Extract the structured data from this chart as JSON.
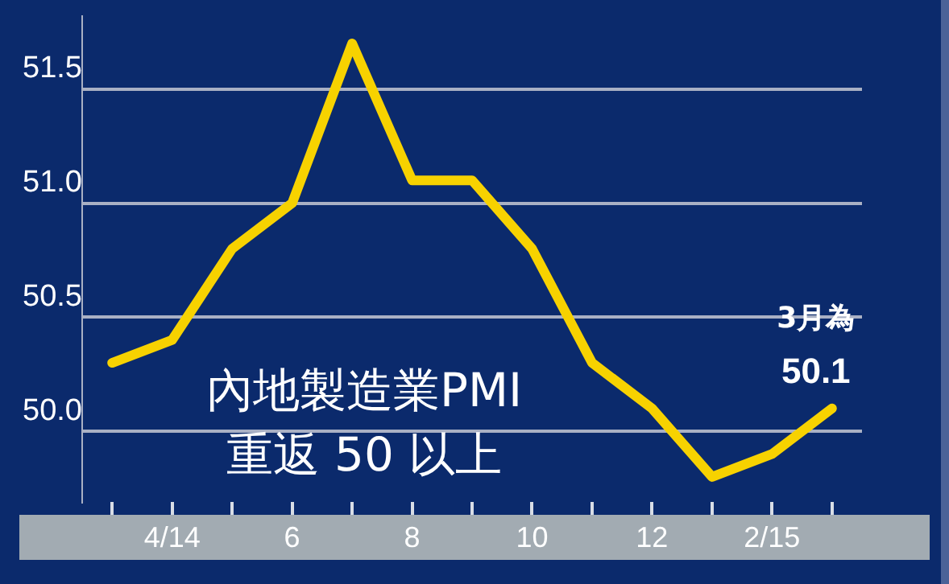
{
  "chart_data": {
    "type": "line",
    "categories": [
      null,
      "4/14",
      null,
      "6",
      null,
      "8",
      null,
      "10",
      null,
      "12",
      null,
      "2/15",
      null
    ],
    "series": [
      {
        "color": "#f7d200",
        "values": [
          50.3,
          50.4,
          50.8,
          51.0,
          51.7,
          51.1,
          51.1,
          50.8,
          50.3,
          50.1,
          49.8,
          49.9,
          50.1
        ],
        "value_labels": [
          null,
          null,
          null,
          null,
          null,
          null,
          null,
          null,
          null,
          null,
          null,
          null,
          "3月為 50.1"
        ]
      }
    ],
    "ylim": [
      49.69,
      51.82
    ],
    "yticks": [
      {
        "value": 50,
        "label": "50.0"
      },
      {
        "value": 50.5,
        "label": "50.5"
      },
      {
        "value": 51,
        "label": "51.0"
      },
      {
        "value": 51.5,
        "label": "51.5"
      }
    ],
    "grid": "y",
    "legend": false,
    "marker": "none",
    "line_style": "solid",
    "annotations": [
      "內地製造業PMI",
      "重返 50 以上"
    ]
  }
}
